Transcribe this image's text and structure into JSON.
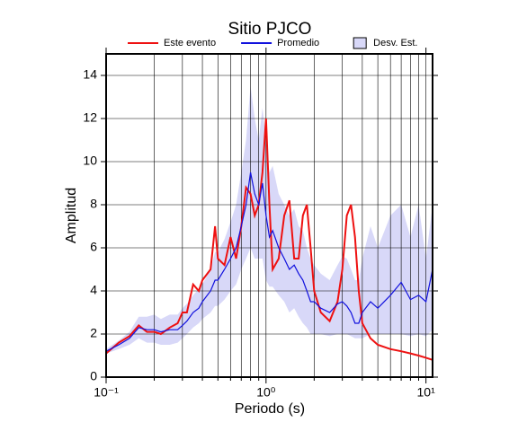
{
  "chart_data": {
    "type": "line",
    "title": "Sitio PJCO",
    "xlabel": "Periodo (s)",
    "ylabel": "Amplitud",
    "xscale": "log",
    "grid": true,
    "xlim": [
      0.1,
      11
    ],
    "ylim": [
      0,
      15
    ],
    "xticks": [
      {
        "value": 0.1,
        "label": "10⁻¹"
      },
      {
        "value": 1,
        "label": "10⁰"
      },
      {
        "value": 10,
        "label": "10¹"
      }
    ],
    "x_minor_ticks": [
      0.2,
      0.3,
      0.4,
      0.5,
      0.6,
      0.7,
      0.8,
      0.9,
      2,
      3,
      4,
      5,
      6,
      7,
      8,
      9
    ],
    "yticks": [
      0,
      2,
      4,
      6,
      8,
      10,
      12,
      14
    ],
    "x": [
      0.1,
      0.12,
      0.14,
      0.16,
      0.18,
      0.2,
      0.22,
      0.25,
      0.28,
      0.3,
      0.32,
      0.35,
      0.38,
      0.4,
      0.45,
      0.48,
      0.5,
      0.55,
      0.6,
      0.65,
      0.7,
      0.75,
      0.8,
      0.85,
      0.9,
      0.95,
      1.0,
      1.05,
      1.1,
      1.2,
      1.3,
      1.4,
      1.5,
      1.6,
      1.7,
      1.8,
      1.9,
      2.0,
      2.2,
      2.5,
      2.8,
      3.0,
      3.2,
      3.4,
      3.6,
      3.8,
      4.0,
      4.5,
      5,
      6,
      7,
      8,
      9,
      10,
      11
    ],
    "band": {
      "name": "Desv. Est.",
      "color": "#d8d8f8",
      "lower": [
        1.1,
        1.3,
        1.5,
        1.8,
        1.6,
        1.6,
        1.5,
        1.5,
        1.6,
        1.8,
        2.0,
        2.3,
        2.5,
        2.7,
        3.0,
        3.3,
        3.3,
        3.6,
        4.0,
        4.3,
        5.0,
        5.5,
        6.0,
        5.5,
        5.5,
        5.5,
        4.5,
        4.2,
        4.2,
        3.8,
        3.5,
        3.0,
        3.2,
        2.8,
        2.5,
        2.3,
        2.0,
        2.0,
        2.0,
        1.9,
        2.0,
        2.0,
        2.0,
        1.9,
        1.8,
        1.8,
        1.8,
        2.0,
        2.0,
        2.0,
        2.0,
        1.9,
        2.0,
        1.9,
        2.2
      ],
      "upper": [
        1.3,
        1.7,
        2.1,
        2.8,
        2.8,
        2.9,
        2.7,
        2.9,
        2.9,
        3.2,
        3.4,
        3.8,
        4.1,
        4.3,
        5.0,
        5.8,
        5.8,
        6.4,
        7.2,
        8.0,
        9.5,
        11.0,
        13.5,
        12.0,
        11.0,
        12.5,
        11.0,
        9.5,
        9.8,
        8.5,
        8.0,
        7.5,
        7.8,
        7.0,
        6.8,
        6.0,
        5.5,
        5.2,
        4.8,
        4.5,
        5.2,
        5.6,
        5.5,
        5.0,
        4.5,
        4.5,
        5.5,
        7.0,
        6.0,
        7.5,
        8.0,
        6.5,
        8.0,
        5.5,
        8.0
      ]
    },
    "series": [
      {
        "name": "Este evento",
        "color": "#ee1111",
        "values": [
          1.1,
          1.6,
          1.9,
          2.4,
          2.1,
          2.1,
          2.0,
          2.3,
          2.5,
          3.0,
          3.0,
          4.3,
          4.0,
          4.5,
          5.0,
          7.0,
          5.5,
          5.2,
          6.5,
          5.5,
          7.0,
          8.8,
          8.5,
          7.5,
          8.0,
          9.5,
          12.0,
          8.0,
          5.0,
          5.5,
          7.5,
          8.2,
          5.5,
          5.5,
          7.5,
          8.0,
          6.0,
          4.0,
          3.0,
          2.6,
          3.5,
          5.0,
          7.5,
          8.0,
          6.5,
          4.0,
          2.5,
          1.8,
          1.5,
          1.3,
          1.2,
          1.1,
          1.0,
          0.9,
          0.8
        ]
      },
      {
        "name": "Promedio",
        "color": "#1111dd",
        "values": [
          1.2,
          1.5,
          1.8,
          2.3,
          2.2,
          2.2,
          2.1,
          2.2,
          2.2,
          2.4,
          2.6,
          3.0,
          3.2,
          3.5,
          4.0,
          4.5,
          4.5,
          5.0,
          5.5,
          6.0,
          7.0,
          8.0,
          9.5,
          8.5,
          8.0,
          9.0,
          7.5,
          6.5,
          6.8,
          6.0,
          5.5,
          5.0,
          5.2,
          4.8,
          4.5,
          4.0,
          3.5,
          3.5,
          3.2,
          3.0,
          3.4,
          3.5,
          3.3,
          3.0,
          2.5,
          2.5,
          3.0,
          3.5,
          3.2,
          3.8,
          4.4,
          3.6,
          3.8,
          3.5,
          5.0
        ]
      }
    ]
  }
}
